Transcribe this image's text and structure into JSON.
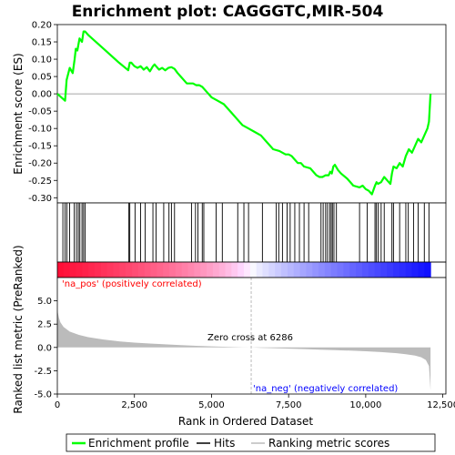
{
  "chart_data": {
    "title": "Enrichment plot: CAGGGTC,MIR-504",
    "type": "line",
    "top_panel": {
      "ylabel": "Enrichment score (ES)",
      "ylim": [
        -0.315,
        0.2
      ],
      "yticks": [
        "0.20",
        "0.15",
        "0.10",
        "0.05",
        "0.00",
        "-0.05",
        "-0.10",
        "-0.15",
        "-0.20",
        "-0.25",
        "-0.30"
      ],
      "ytick_values": [
        0.2,
        0.15,
        0.1,
        0.05,
        0.0,
        -0.05,
        -0.1,
        -0.15,
        -0.2,
        -0.25,
        -0.3
      ],
      "series": [
        {
          "name": "Enrichment profile",
          "color": "#00ff00",
          "x": [
            0,
            250,
            300,
            400,
            500,
            560,
            600,
            650,
            720,
            800,
            850,
            900,
            1000,
            1500,
            2000,
            2300,
            2350,
            2400,
            2500,
            2600,
            2700,
            2800,
            2900,
            3000,
            3100,
            3150,
            3200,
            3300,
            3400,
            3500,
            3600,
            3700,
            3800,
            3900,
            4000,
            4200,
            4400,
            4500,
            4600,
            4700,
            4800,
            5000,
            5200,
            5400,
            5600,
            5800,
            6000,
            6200,
            6400,
            6600,
            6800,
            7000,
            7200,
            7300,
            7400,
            7500,
            7600,
            7700,
            7800,
            7900,
            8000,
            8200,
            8400,
            8500,
            8600,
            8700,
            8800,
            8850,
            8900,
            8950,
            9000,
            9100,
            9200,
            9400,
            9600,
            9800,
            9900,
            10000,
            10100,
            10200,
            10300,
            10350,
            10400,
            10500,
            10600,
            10700,
            10800,
            10850,
            10900,
            11000,
            11100,
            11200,
            11300,
            11400,
            11500,
            11600,
            11700,
            11800,
            11900,
            12000,
            12050,
            12100
          ],
          "y": [
            0.0,
            -0.02,
            0.04,
            0.075,
            0.06,
            0.1,
            0.13,
            0.125,
            0.16,
            0.15,
            0.18,
            0.18,
            0.17,
            0.13,
            0.09,
            0.068,
            0.09,
            0.09,
            0.08,
            0.075,
            0.08,
            0.07,
            0.077,
            0.065,
            0.08,
            0.085,
            0.08,
            0.07,
            0.075,
            0.068,
            0.075,
            0.077,
            0.072,
            0.06,
            0.05,
            0.03,
            0.03,
            0.025,
            0.025,
            0.02,
            0.01,
            -0.01,
            -0.02,
            -0.03,
            -0.05,
            -0.07,
            -0.09,
            -0.1,
            -0.11,
            -0.12,
            -0.14,
            -0.16,
            -0.165,
            -0.17,
            -0.175,
            -0.175,
            -0.18,
            -0.19,
            -0.2,
            -0.2,
            -0.21,
            -0.215,
            -0.235,
            -0.24,
            -0.24,
            -0.235,
            -0.235,
            -0.225,
            -0.23,
            -0.21,
            -0.205,
            -0.22,
            -0.23,
            -0.245,
            -0.265,
            -0.27,
            -0.265,
            -0.275,
            -0.28,
            -0.29,
            -0.265,
            -0.255,
            -0.26,
            -0.255,
            -0.24,
            -0.25,
            -0.26,
            -0.23,
            -0.21,
            -0.215,
            -0.2,
            -0.21,
            -0.18,
            -0.16,
            -0.17,
            -0.15,
            -0.13,
            -0.14,
            -0.12,
            -0.1,
            -0.08,
            0.0
          ]
        }
      ]
    },
    "hits_panel": {
      "hit_positions": [
        180,
        250,
        310,
        400,
        550,
        620,
        680,
        730,
        800,
        850,
        900,
        2320,
        2350,
        2520,
        2700,
        2850,
        3100,
        3200,
        3450,
        3620,
        3700,
        3800,
        4350,
        4480,
        4560,
        4700,
        4750,
        5150,
        5350,
        5850,
        6050,
        6200,
        6650,
        7100,
        7180,
        7300,
        7450,
        7550,
        7700,
        7850,
        8000,
        8150,
        8550,
        8620,
        8700,
        8760,
        8830,
        8880,
        8920,
        8970,
        9050,
        9800,
        10050,
        10300,
        10340,
        10400,
        10500,
        10600,
        10850,
        10900,
        11100,
        11300,
        11380,
        11550,
        11700,
        11900,
        12050
      ]
    },
    "bottom_panel": {
      "xlabel": "Rank in Ordered Dataset",
      "ylabel": "Ranked list metric (PreRanked)",
      "ylim": [
        -5.0,
        7.5
      ],
      "yticks": [
        "5.0",
        "2.5",
        "0.0",
        "-2.5",
        "-5.0"
      ],
      "ytick_values": [
        5.0,
        2.5,
        0.0,
        -2.5,
        -5.0
      ],
      "xlim": [
        0,
        12600
      ],
      "xticks": [
        "0",
        "2,500",
        "5,000",
        "7,500",
        "10,000",
        "12,500"
      ],
      "xtick_values": [
        0,
        2500,
        5000,
        7500,
        10000,
        12500
      ],
      "metric_x": [
        0,
        50,
        100,
        200,
        400,
        700,
        1000,
        1500,
        2000,
        2500,
        3000,
        3500,
        4000,
        4500,
        5000,
        5500,
        6000,
        6286,
        6600,
        7000,
        7500,
        8000,
        8500,
        9000,
        9500,
        10000,
        10500,
        11000,
        11300,
        11600,
        11800,
        11950,
        12050,
        12100
      ],
      "metric_y": [
        4.0,
        3.2,
        2.7,
        2.2,
        1.7,
        1.35,
        1.1,
        0.85,
        0.65,
        0.52,
        0.42,
        0.33,
        0.25,
        0.18,
        0.12,
        0.07,
        0.02,
        0.0,
        -0.04,
        -0.08,
        -0.13,
        -0.18,
        -0.23,
        -0.28,
        -0.34,
        -0.41,
        -0.5,
        -0.62,
        -0.72,
        -0.88,
        -1.05,
        -1.35,
        -2.0,
        -4.6
      ],
      "zero_cross_label": "Zero cross at 6286",
      "zero_cross": 6286,
      "na_pos_label": "'na_pos' (positively correlated)",
      "na_neg_label": "'na_neg' (negatively correlated)"
    },
    "total_rank": 12100,
    "legend": {
      "items": [
        "Enrichment profile",
        "Hits",
        "Ranking metric scores"
      ],
      "placement": "bottom"
    },
    "colors": {
      "profile": "#00ff00",
      "hits": "#000000",
      "metric_fill": "#bbbbbb",
      "pos_label": "#ff0000",
      "neg_label": "#0000ff",
      "zero_line": "#aaaaaa"
    }
  }
}
